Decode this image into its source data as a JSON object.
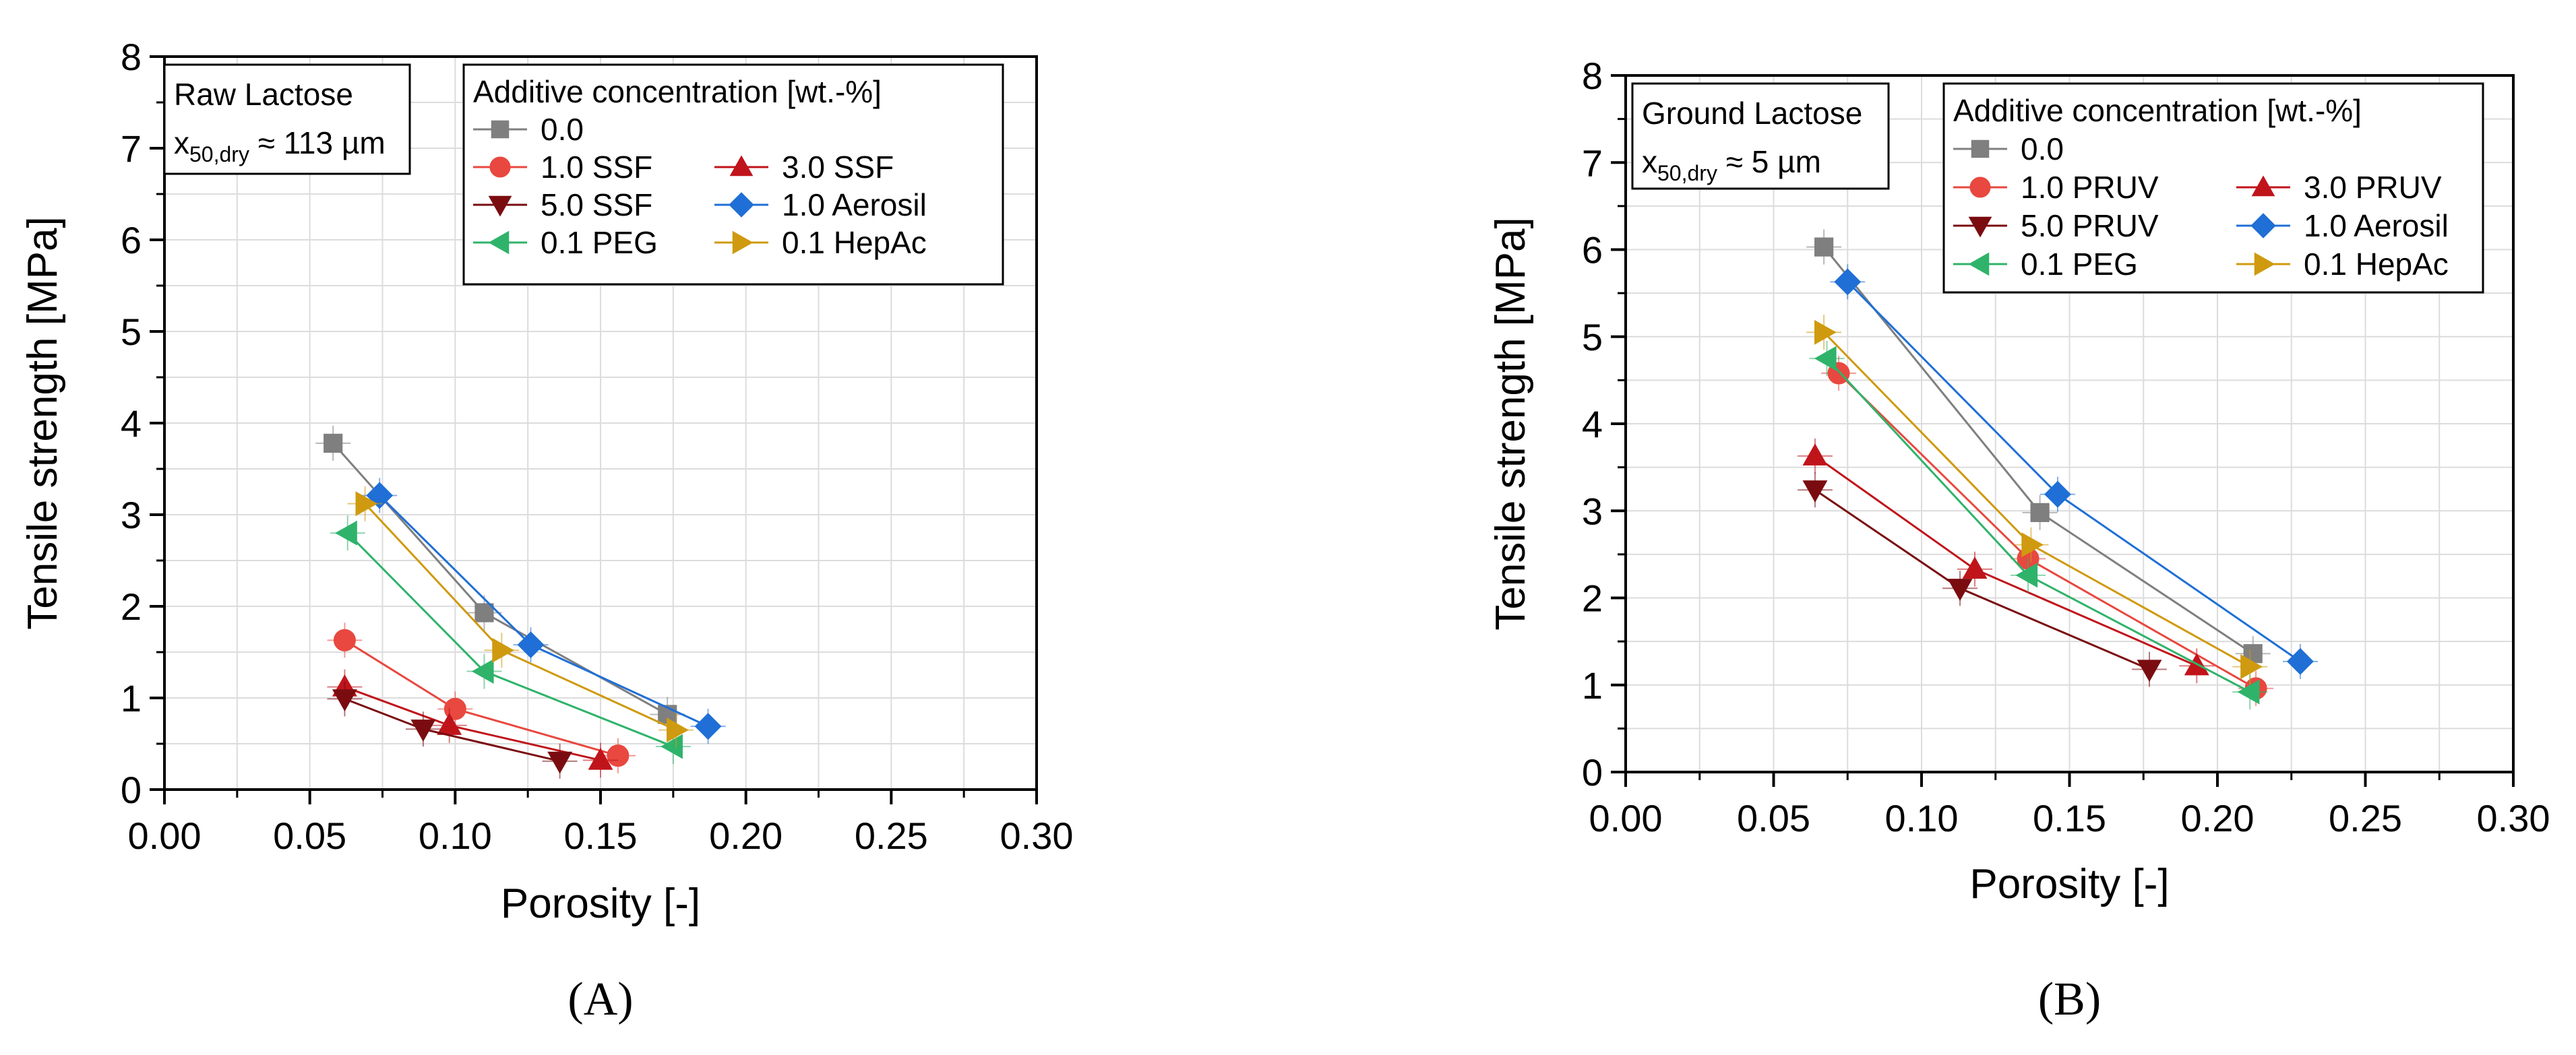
{
  "colors": {
    "0.0": "#7f7f7f",
    "1.0 SSF": "#e8483f",
    "3.0 SSF": "#c0141b",
    "5.0 SSF": "#7a0c10",
    "1.0 PRUV": "#e8483f",
    "3.0 PRUV": "#c0141b",
    "5.0 PRUV": "#7a0c10",
    "1.0 Aerosil": "#1f6fd6",
    "0.1 PEG": "#2fb36a",
    "0.1 HepAc": "#cf9a0f"
  },
  "chart_data": [
    {
      "type": "scatter",
      "panel_label": "A",
      "xlabel": "Porosity [-]",
      "ylabel": "Tensile strength [MPa]",
      "xlim": [
        0.0,
        0.3
      ],
      "ylim": [
        0,
        8
      ],
      "x_ticks": [
        "0.00",
        "0.05",
        "0.10",
        "0.15",
        "0.20",
        "0.25",
        "0.30"
      ],
      "y_ticks": [
        "0",
        "1",
        "2",
        "3",
        "4",
        "5",
        "6",
        "7",
        "8"
      ],
      "grid": true,
      "info_box": {
        "title": "Raw Lactose",
        "x_symbol": "x",
        "x_subscript": "50,dry",
        "x_value": " ≈ 113 µm"
      },
      "legend_title": "Additive concentration [wt.-%]",
      "series": [
        {
          "name": "0.0",
          "marker": "square",
          "x": [
            0.058,
            0.11,
            0.173
          ],
          "y": [
            3.78,
            1.93,
            0.82
          ]
        },
        {
          "name": "1.0 SSF",
          "marker": "circle",
          "x": [
            0.062,
            0.1,
            0.156
          ],
          "y": [
            1.63,
            0.88,
            0.37
          ]
        },
        {
          "name": "3.0 SSF",
          "marker": "triangle-up",
          "x": [
            0.062,
            0.098,
            0.15
          ],
          "y": [
            1.12,
            0.7,
            0.32
          ]
        },
        {
          "name": "5.0 SSF",
          "marker": "triangle-down",
          "x": [
            0.062,
            0.089,
            0.136
          ],
          "y": [
            0.99,
            0.66,
            0.31
          ]
        },
        {
          "name": "1.0 Aerosil",
          "marker": "diamond",
          "x": [
            0.074,
            0.126,
            0.187
          ],
          "y": [
            3.21,
            1.58,
            0.69
          ]
        },
        {
          "name": "0.1 PEG",
          "marker": "triangle-left",
          "x": [
            0.063,
            0.11,
            0.175
          ],
          "y": [
            2.8,
            1.29,
            0.47
          ]
        },
        {
          "name": "0.1 HepAc",
          "marker": "triangle-right",
          "x": [
            0.069,
            0.116,
            0.176
          ],
          "y": [
            3.12,
            1.52,
            0.65
          ]
        }
      ]
    },
    {
      "type": "scatter",
      "panel_label": "B",
      "xlabel": "Porosity [-]",
      "ylabel": "Tensile strength [MPa]",
      "xlim": [
        0.0,
        0.3
      ],
      "ylim": [
        0,
        8
      ],
      "x_ticks": [
        "0.00",
        "0.05",
        "0.10",
        "0.15",
        "0.20",
        "0.25",
        "0.30"
      ],
      "y_ticks": [
        "0",
        "1",
        "2",
        "3",
        "4",
        "5",
        "6",
        "7",
        "8"
      ],
      "grid": true,
      "info_box": {
        "title": "Ground Lactose",
        "x_symbol": "x",
        "x_subscript": "50,dry",
        "x_value": " ≈ 5 µm"
      },
      "legend_title": "Additive concentration [wt.-%]",
      "series": [
        {
          "name": "0.0",
          "marker": "square",
          "x": [
            0.067,
            0.14,
            0.212
          ],
          "y": [
            6.03,
            2.98,
            1.36
          ]
        },
        {
          "name": "1.0 PRUV",
          "marker": "circle",
          "x": [
            0.072,
            0.136,
            0.213
          ],
          "y": [
            4.58,
            2.45,
            0.96
          ]
        },
        {
          "name": "3.0 PRUV",
          "marker": "triangle-up",
          "x": [
            0.064,
            0.118,
            0.193
          ],
          "y": [
            3.63,
            2.33,
            1.22
          ]
        },
        {
          "name": "5.0 PRUV",
          "marker": "triangle-down",
          "x": [
            0.064,
            0.113,
            0.177
          ],
          "y": [
            3.24,
            2.11,
            1.18
          ]
        },
        {
          "name": "1.0 Aerosil",
          "marker": "diamond",
          "x": [
            0.075,
            0.146,
            0.228
          ],
          "y": [
            5.63,
            3.19,
            1.27
          ]
        },
        {
          "name": "0.1 PEG",
          "marker": "triangle-left",
          "x": [
            0.068,
            0.136,
            0.211
          ],
          "y": [
            4.75,
            2.26,
            0.92
          ]
        },
        {
          "name": "0.1 HepAc",
          "marker": "triangle-right",
          "x": [
            0.067,
            0.137,
            0.211
          ],
          "y": [
            5.05,
            2.61,
            1.21
          ]
        }
      ]
    }
  ]
}
